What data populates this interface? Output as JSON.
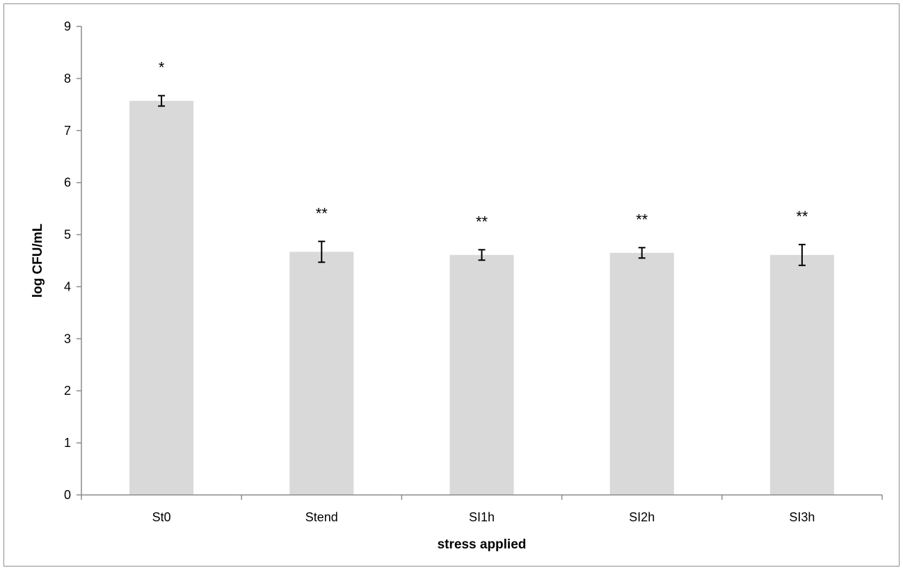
{
  "chart_data": {
    "type": "bar",
    "categories": [
      "St0",
      "Stend",
      "SI1h",
      "SI2h",
      "SI3h"
    ],
    "values": [
      7.57,
      4.67,
      4.61,
      4.65,
      4.61
    ],
    "errors": [
      0.1,
      0.2,
      0.1,
      0.1,
      0.2
    ],
    "annotations": [
      "*",
      "**",
      "**",
      "**",
      "**"
    ],
    "xlabel": "stress applied",
    "ylabel": "log CFU/mL",
    "ylim": [
      0,
      9
    ],
    "yticks": [
      "0",
      "1",
      "2",
      "3",
      "4",
      "5",
      "6",
      "7",
      "8",
      "9"
    ],
    "grid": false,
    "bar_color": "#d9d9d9"
  }
}
